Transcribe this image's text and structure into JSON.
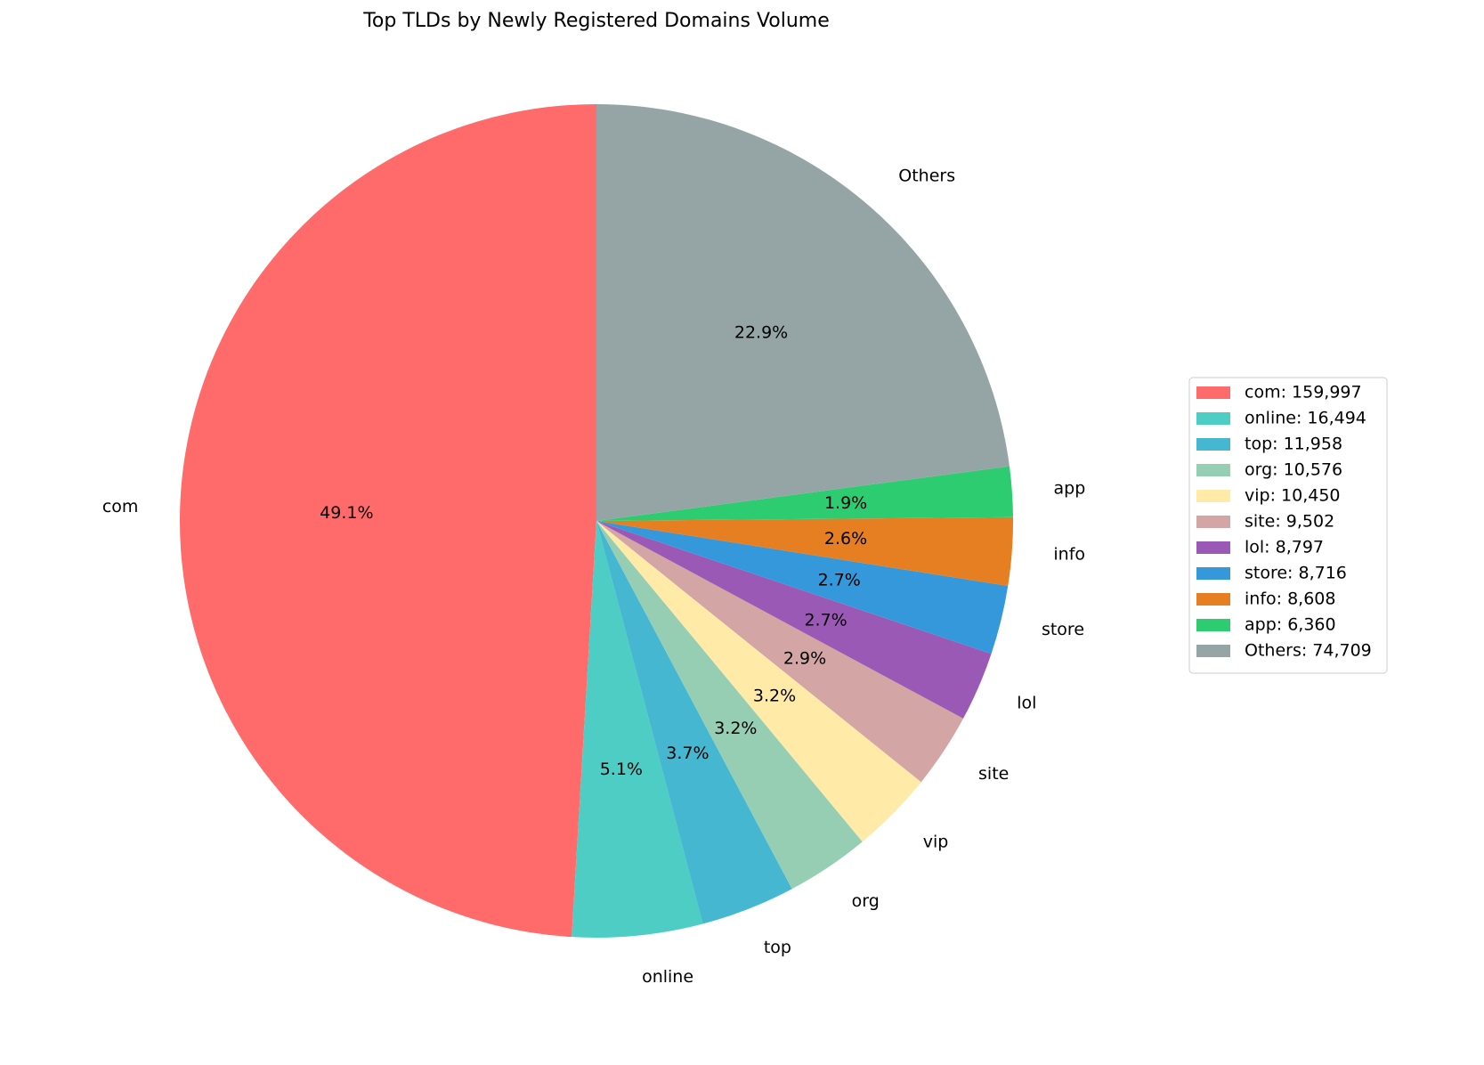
{
  "chart_data": {
    "type": "pie",
    "title": "Top TLDs by Newly Registered Domains Volume",
    "categories": [
      "com",
      "online",
      "top",
      "org",
      "vip",
      "site",
      "lol",
      "store",
      "info",
      "app",
      "Others"
    ],
    "values": [
      159997,
      16494,
      11958,
      10576,
      10450,
      9502,
      8797,
      8716,
      8608,
      6360,
      74709
    ],
    "percent_labels": [
      "49.1%",
      "5.1%",
      "3.7%",
      "3.2%",
      "3.2%",
      "2.9%",
      "2.7%",
      "2.7%",
      "2.6%",
      "1.9%",
      "22.9%"
    ],
    "legend_labels": [
      "com: 159,997",
      "online: 16,494",
      "top: 11,958",
      "org: 10,576",
      "vip: 10,450",
      "site: 9,502",
      "lol: 8,797",
      "store: 8,716",
      "info: 8,608",
      "app: 6,360",
      "Others: 74,709"
    ],
    "colors": [
      "#ff6b6b",
      "#4ecdc4",
      "#45b7d1",
      "#96ceb4",
      "#ffeaa7",
      "#d4a5a5",
      "#9b59b6",
      "#3498db",
      "#e67e22",
      "#2ecc71",
      "#95a5a6"
    ],
    "startangle": 90,
    "counterclock": true,
    "legend": "right"
  }
}
